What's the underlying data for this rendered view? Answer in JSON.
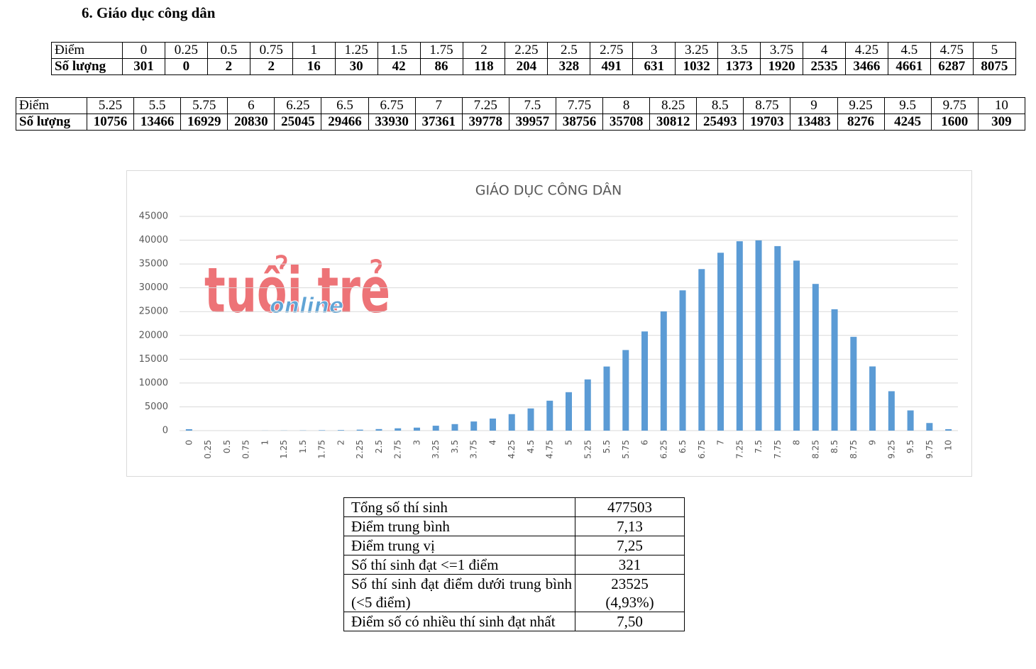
{
  "heading": "6.  Giáo dục công dân",
  "tables": [
    {
      "row_labels": [
        "Điểm",
        "Số lượng"
      ],
      "scores": [
        0,
        0.25,
        0.5,
        0.75,
        1,
        1.25,
        1.5,
        1.75,
        2,
        2.25,
        2.5,
        2.75,
        3,
        3.25,
        3.5,
        3.75,
        4,
        4.25,
        4.5,
        4.75,
        5
      ],
      "counts": [
        301,
        0,
        2,
        2,
        16,
        30,
        42,
        86,
        118,
        204,
        328,
        491,
        631,
        1032,
        1373,
        1920,
        2535,
        3466,
        4661,
        6287,
        8075
      ]
    },
    {
      "row_labels": [
        "Điểm",
        "Số lượng"
      ],
      "scores": [
        5.25,
        5.5,
        5.75,
        6,
        6.25,
        6.5,
        6.75,
        7,
        7.25,
        7.5,
        7.75,
        8,
        8.25,
        8.5,
        8.75,
        9,
        9.25,
        9.5,
        9.75,
        10
      ],
      "counts": [
        10756,
        13466,
        16929,
        20830,
        25045,
        29466,
        33930,
        37361,
        39778,
        39957,
        38756,
        35708,
        30812,
        25493,
        19703,
        13483,
        8276,
        4245,
        1600,
        309
      ]
    }
  ],
  "chart_data": {
    "type": "bar",
    "title": "GIÁO DỤC CÔNG DÂN",
    "categories": [
      "0",
      "0.25",
      "0.5",
      "0.75",
      "1",
      "1.25",
      "1.5",
      "1.75",
      "2",
      "2.25",
      "2.5",
      "2.75",
      "3",
      "3.25",
      "3.5",
      "3.75",
      "4",
      "4.25",
      "4.5",
      "4.75",
      "5",
      "5.25",
      "5.5",
      "5.75",
      "6",
      "6.25",
      "6.5",
      "6.75",
      "7",
      "7.25",
      "7.5",
      "7.75",
      "8",
      "8.25",
      "8.5",
      "8.75",
      "9",
      "9.25",
      "9.5",
      "9.75",
      "10"
    ],
    "values": [
      301,
      0,
      2,
      2,
      16,
      30,
      42,
      86,
      118,
      204,
      328,
      491,
      631,
      1032,
      1373,
      1920,
      2535,
      3466,
      4661,
      6287,
      8075,
      10756,
      13466,
      16929,
      20830,
      25045,
      29466,
      33930,
      37361,
      39778,
      39957,
      38756,
      35708,
      30812,
      25493,
      19703,
      13483,
      8276,
      4245,
      1600,
      309
    ],
    "color": "#5b9bd5",
    "ylim": [
      0,
      45000
    ],
    "yticks": [
      0,
      5000,
      10000,
      15000,
      20000,
      25000,
      30000,
      35000,
      40000,
      45000
    ],
    "grid": true
  },
  "watermark": {
    "brand": "tuổi trẻ",
    "sub": "online"
  },
  "summary": {
    "rows": [
      {
        "label": "Tổng số thí sinh",
        "value": [
          "477503"
        ]
      },
      {
        "label": "Điểm trung bình",
        "value": [
          "7,13"
        ]
      },
      {
        "label": "Điểm trung vị",
        "value": [
          "7,25"
        ]
      },
      {
        "label": "Số thí sinh đạt <=1 điểm",
        "value": [
          "321"
        ]
      },
      {
        "label": "Số thí sinh đạt điểm dưới trung bình (<5 điểm)",
        "value": [
          "23525",
          "(4,93%)"
        ]
      },
      {
        "label": "Điểm số có nhiều thí sinh đạt nhất",
        "value": [
          "7,50"
        ]
      }
    ]
  }
}
